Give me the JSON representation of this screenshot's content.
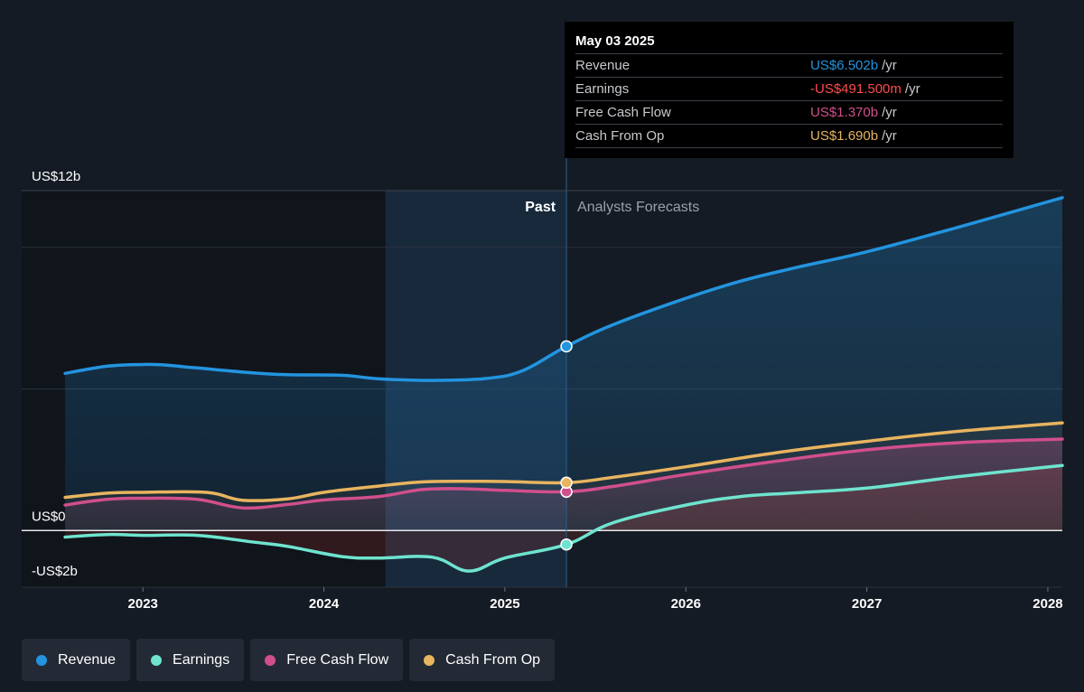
{
  "colors": {
    "revenue": "#2394df",
    "earnings": "#6ee4cf",
    "free_cash_flow": "#d14f8c",
    "cash_from_op": "#e8b45f",
    "negative": "#ff4c4c"
  },
  "tooltip": {
    "date": "May 03 2025",
    "rows": [
      {
        "label": "Revenue",
        "value": "US$6.502b",
        "unit": "/yr"
      },
      {
        "label": "Earnings",
        "value": "-US$491.500m",
        "unit": "/yr"
      },
      {
        "label": "Free Cash Flow",
        "value": "US$1.370b",
        "unit": "/yr"
      },
      {
        "label": "Cash From Op",
        "value": "US$1.690b",
        "unit": "/yr"
      }
    ]
  },
  "legend": [
    {
      "label": "Revenue",
      "color_key": "revenue"
    },
    {
      "label": "Earnings",
      "color_key": "earnings"
    },
    {
      "label": "Free Cash Flow",
      "color_key": "free_cash_flow"
    },
    {
      "label": "Cash From Op",
      "color_key": "cash_from_op"
    }
  ],
  "chart_data": {
    "type": "line",
    "ylim": [
      -2,
      12
    ],
    "xlim": [
      2022.33,
      2028.08
    ],
    "y_tick_labels": [
      {
        "value": 12,
        "label": "US$12b"
      },
      {
        "value": 0,
        "label": "US$0"
      },
      {
        "value": -2,
        "label": "-US$2b"
      }
    ],
    "x_ticks": [
      {
        "value": 2023,
        "label": "2023"
      },
      {
        "value": 2024,
        "label": "2024"
      },
      {
        "value": 2025,
        "label": "2025"
      },
      {
        "value": 2026,
        "label": "2026"
      },
      {
        "value": 2027,
        "label": "2027"
      },
      {
        "value": 2028,
        "label": "2028"
      }
    ],
    "past_label": "Past",
    "forecast_label": "Analysts Forecasts",
    "highlight_start": 2024.34,
    "now": 2025.34,
    "series": [
      {
        "name": "Revenue",
        "color_key": "revenue",
        "x": [
          2022.57,
          2022.8,
          2023.0,
          2023.1,
          2023.3,
          2023.6,
          2023.8,
          2024.1,
          2024.3,
          2024.6,
          2024.9,
          2025.1,
          2025.34,
          2025.6,
          2026.0,
          2026.3,
          2026.6,
          2027.0,
          2027.5,
          2028.08
        ],
        "values": [
          5.55,
          5.8,
          5.86,
          5.85,
          5.74,
          5.57,
          5.5,
          5.48,
          5.36,
          5.3,
          5.37,
          5.65,
          6.502,
          7.27,
          8.2,
          8.8,
          9.27,
          9.84,
          10.7,
          11.75
        ]
      },
      {
        "name": "Earnings",
        "color_key": "earnings",
        "x": [
          2022.57,
          2022.8,
          2023.0,
          2023.3,
          2023.6,
          2023.8,
          2024.1,
          2024.3,
          2024.6,
          2024.8,
          2025.0,
          2025.34,
          2025.6,
          2026.0,
          2026.3,
          2026.6,
          2027.0,
          2027.5,
          2028.08
        ],
        "values": [
          -0.23,
          -0.14,
          -0.17,
          -0.17,
          -0.4,
          -0.56,
          -0.92,
          -0.97,
          -0.94,
          -1.43,
          -0.97,
          -0.4915,
          0.28,
          0.9,
          1.2,
          1.33,
          1.5,
          1.9,
          2.3
        ]
      },
      {
        "name": "Free Cash Flow",
        "color_key": "free_cash_flow",
        "x": [
          2022.57,
          2022.8,
          2023.0,
          2023.3,
          2023.55,
          2023.8,
          2024.0,
          2024.3,
          2024.55,
          2024.8,
          2025.0,
          2025.34,
          2025.6,
          2026.0,
          2026.5,
          2027.0,
          2027.5,
          2028.08
        ],
        "values": [
          0.9,
          1.1,
          1.14,
          1.1,
          0.8,
          0.92,
          1.08,
          1.2,
          1.45,
          1.47,
          1.42,
          1.37,
          1.56,
          1.98,
          2.45,
          2.85,
          3.1,
          3.23
        ]
      },
      {
        "name": "Cash From Op",
        "color_key": "cash_from_op",
        "x": [
          2022.57,
          2022.8,
          2023.0,
          2023.35,
          2023.55,
          2023.8,
          2024.0,
          2024.3,
          2024.55,
          2024.8,
          2025.0,
          2025.34,
          2025.6,
          2026.0,
          2026.5,
          2027.0,
          2027.5,
          2028.08
        ],
        "values": [
          1.17,
          1.32,
          1.35,
          1.35,
          1.07,
          1.12,
          1.35,
          1.57,
          1.72,
          1.74,
          1.73,
          1.69,
          1.88,
          2.25,
          2.75,
          3.15,
          3.5,
          3.8
        ]
      }
    ]
  }
}
